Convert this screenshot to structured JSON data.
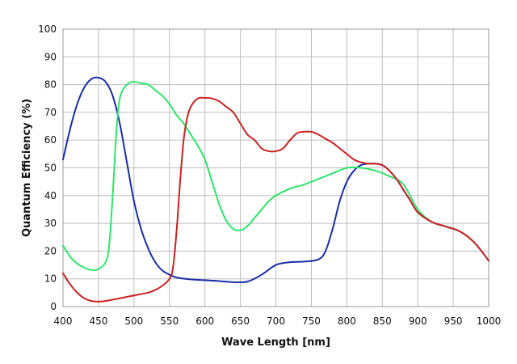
{
  "chart_data": {
    "type": "line",
    "xlabel": "Wave Length [nm]",
    "ylabel": "Quantum Efficiency (%)",
    "xlim": [
      400,
      1000
    ],
    "ylim": [
      0,
      100
    ],
    "x_ticks": [
      "400",
      "450",
      "500",
      "550",
      "600",
      "650",
      "700",
      "750",
      "800",
      "850",
      "900",
      "950",
      "1000"
    ],
    "y_ticks": [
      "0",
      "10",
      "20",
      "30",
      "40",
      "50",
      "60",
      "70",
      "80",
      "90",
      "100"
    ],
    "grid": true,
    "series": [
      {
        "color": "#1a2ea8",
        "x": [
          400,
          410,
          420,
          430,
          440,
          450,
          460,
          470,
          480,
          490,
          500,
          510,
          520,
          530,
          540,
          550,
          560,
          580,
          600,
          620,
          640,
          660,
          680,
          700,
          720,
          740,
          760,
          770,
          780,
          790,
          800,
          810,
          820,
          830,
          840,
          850,
          860,
          870,
          880,
          890,
          900,
          920,
          940,
          960,
          980,
          1000
        ],
        "y": [
          53,
          64,
          73,
          79,
          82,
          82.5,
          81,
          76,
          66,
          52,
          38,
          28,
          21,
          16,
          13,
          11.5,
          10.5,
          9.8,
          9.5,
          9.2,
          8.8,
          9,
          11.5,
          15,
          16,
          16.2,
          17,
          20,
          28,
          38,
          45,
          49,
          51,
          51.5,
          51.5,
          51,
          49,
          46,
          42,
          38,
          34,
          30.5,
          28.8,
          27,
          23,
          16.5
        ]
      },
      {
        "color": "#2ee56a",
        "x": [
          400,
          410,
          420,
          430,
          440,
          450,
          460,
          465,
          470,
          475,
          480,
          490,
          500,
          510,
          520,
          530,
          540,
          550,
          560,
          570,
          580,
          590,
          600,
          610,
          620,
          630,
          640,
          650,
          660,
          670,
          680,
          690,
          700,
          720,
          740,
          760,
          780,
          800,
          820,
          840,
          860,
          880,
          900,
          920,
          940,
          960,
          980,
          1000
        ],
        "y": [
          22,
          18,
          15.5,
          14,
          13.2,
          13.5,
          16,
          22,
          40,
          62,
          75,
          80,
          81,
          80.5,
          80,
          78,
          76,
          73,
          69,
          66,
          62,
          58,
          53,
          45,
          37,
          31,
          28,
          27.5,
          29,
          32,
          35,
          38,
          40,
          42.5,
          44,
          46,
          48,
          50,
          50,
          49,
          47,
          44,
          35,
          30.5,
          28.8,
          27,
          23,
          16.5
        ]
      },
      {
        "color": "#cc2222",
        "x": [
          400,
          410,
          420,
          430,
          440,
          450,
          460,
          470,
          480,
          490,
          500,
          510,
          520,
          530,
          540,
          550,
          555,
          560,
          565,
          570,
          575,
          580,
          590,
          600,
          610,
          620,
          630,
          640,
          650,
          660,
          670,
          680,
          690,
          700,
          710,
          720,
          730,
          740,
          750,
          760,
          770,
          780,
          790,
          800,
          810,
          820,
          830,
          840,
          850,
          860,
          870,
          880,
          890,
          900,
          920,
          940,
          960,
          980,
          1000
        ],
        "y": [
          12,
          8,
          5,
          3,
          2,
          1.8,
          2,
          2.5,
          3,
          3.5,
          4,
          4.5,
          5,
          6,
          7.5,
          10,
          14,
          27,
          45,
          60,
          68,
          72,
          75,
          75.2,
          75,
          74,
          72,
          70,
          66,
          62,
          60,
          57,
          56,
          56,
          57,
          60,
          62.5,
          63,
          63,
          62,
          60.5,
          59,
          57,
          55,
          53,
          52,
          51.5,
          51.5,
          51,
          49,
          46,
          42,
          38,
          34,
          30.5,
          28.8,
          27,
          23,
          16.5
        ]
      }
    ]
  }
}
